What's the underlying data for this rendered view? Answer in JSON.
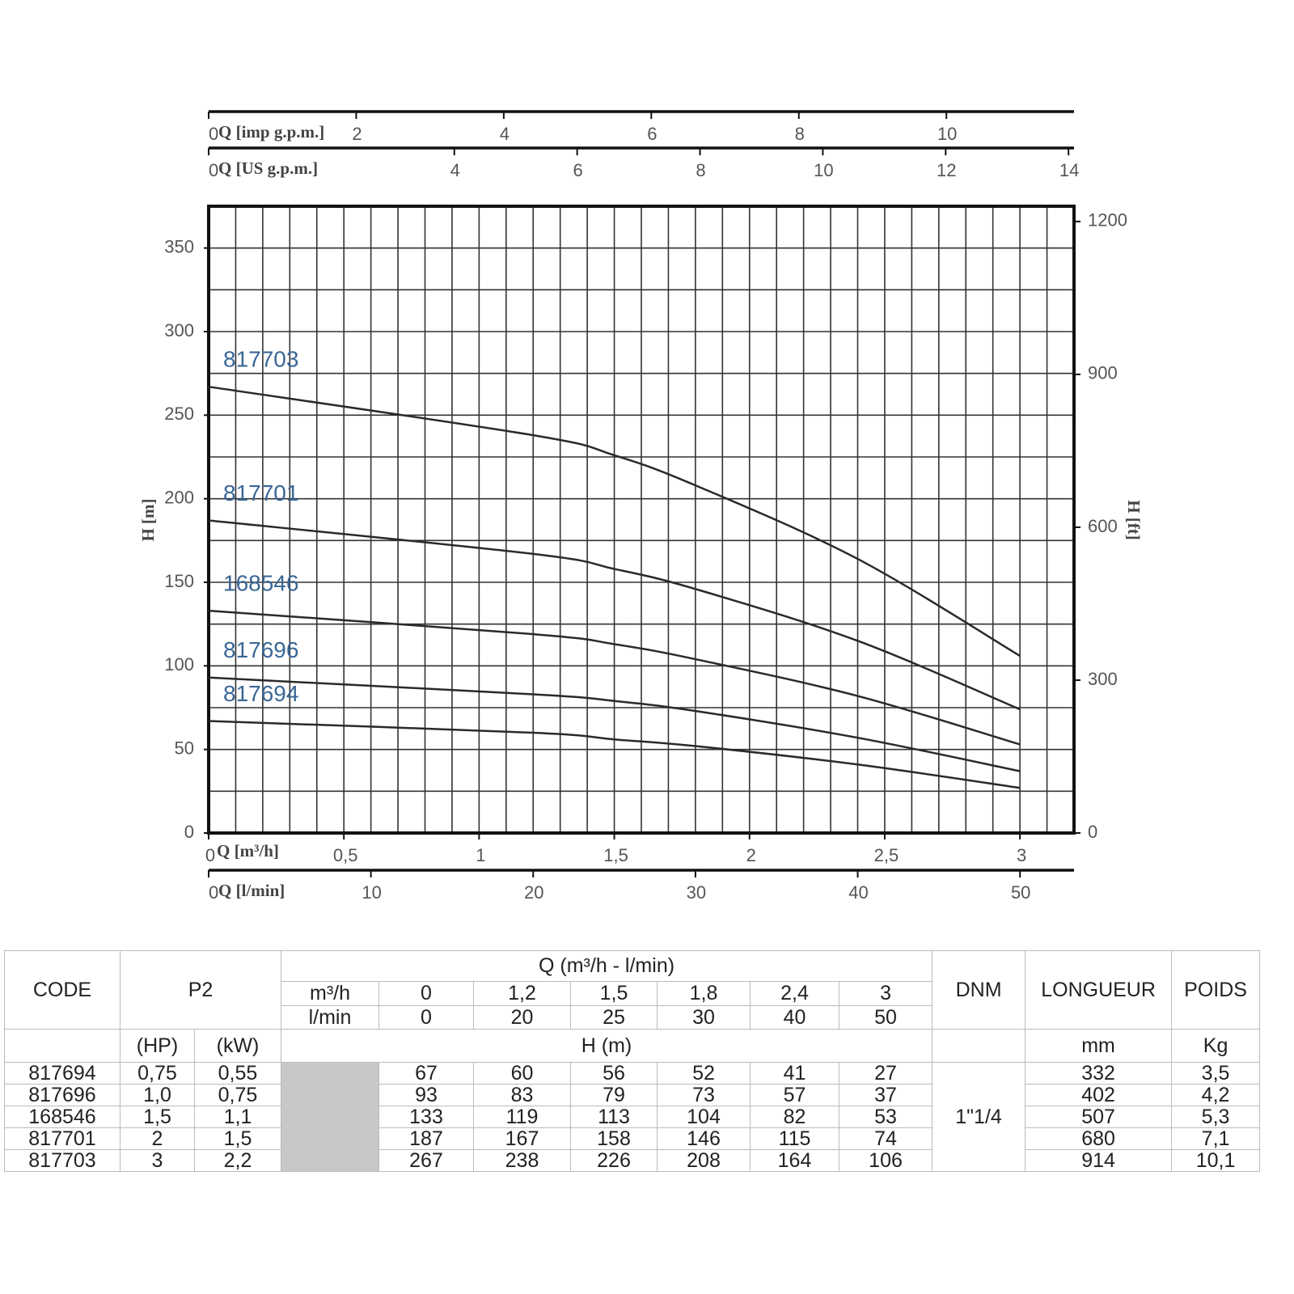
{
  "chart_data": {
    "type": "line",
    "x": [
      0,
      1.2,
      1.5,
      1.8,
      2.4,
      3
    ],
    "series": [
      {
        "name": "817694",
        "color": "#2a2a2a",
        "values": [
          67,
          60,
          56,
          52,
          41,
          27
        ]
      },
      {
        "name": "817696",
        "color": "#2a2a2a",
        "values": [
          93,
          83,
          79,
          73,
          57,
          37
        ]
      },
      {
        "name": "168546",
        "color": "#2a2a2a",
        "values": [
          133,
          119,
          113,
          104,
          82,
          53
        ]
      },
      {
        "name": "817701",
        "color": "#2a2a2a",
        "values": [
          187,
          167,
          158,
          146,
          115,
          74
        ]
      },
      {
        "name": "817703",
        "color": "#2a2a2a",
        "values": [
          267,
          238,
          226,
          208,
          164,
          106
        ]
      }
    ],
    "label_color": "#3a6796",
    "xlabel": "Q [m³/h]",
    "xlim": [
      0,
      3.2
    ],
    "xticks": [
      0,
      {
        "value": 0.5,
        "label": "0,5"
      },
      1,
      {
        "value": 1.5,
        "label": "1,5"
      },
      2,
      {
        "value": 2.5,
        "label": "2,5"
      },
      3
    ],
    "ylabel": "H [m]",
    "ylim": [
      0,
      375
    ],
    "yticks": [
      0,
      50,
      100,
      150,
      200,
      250,
      300,
      350
    ],
    "y2label": "H [ft]",
    "y2lim": [
      0,
      1230
    ],
    "y2ticks": [
      0,
      300,
      600,
      900,
      1200
    ],
    "extra_x_axes": [
      {
        "label": "Q [imp g.p.m.]",
        "position": "top",
        "lim": [
          0,
          11.73
        ],
        "ticks": [
          0,
          2,
          4,
          6,
          8,
          10
        ]
      },
      {
        "label": "Q [US g.p.m.]",
        "position": "top",
        "lim": [
          0,
          14.09
        ],
        "ticks": [
          0,
          4,
          6,
          8,
          10,
          12,
          14
        ]
      },
      {
        "label": "Q [l/min]",
        "position": "bottom",
        "lim": [
          0,
          53.33
        ],
        "ticks": [
          0,
          10,
          20,
          30,
          40,
          50
        ]
      }
    ],
    "grid": true,
    "xgrid_step": 0.1,
    "ygrid_step": 25
  },
  "table": {
    "header": {
      "code": "CODE",
      "p2": "P2",
      "q": "Q (m³/h - l/min)",
      "q_m3h_label": "m³/h",
      "q_m3h": [
        "0",
        "1,2",
        "1,5",
        "1,8",
        "2,4",
        "3"
      ],
      "q_lmin_label": "l/min",
      "q_lmin": [
        "0",
        "20",
        "25",
        "30",
        "40",
        "50"
      ],
      "dnm": "DNM",
      "longueur": "LONGUEUR",
      "poids": "POIDS",
      "hp": "(HP)",
      "kw": "(kW)",
      "h": "H (m)",
      "mm": "mm",
      "kg": "Kg"
    },
    "dnm_value": "1\"1/4",
    "rows": [
      [
        "817694",
        "0,75",
        "0,55",
        "67",
        "60",
        "56",
        "52",
        "41",
        "27",
        "332",
        "3,5"
      ],
      [
        "817696",
        "1,0",
        "0,75",
        "93",
        "83",
        "79",
        "73",
        "57",
        "37",
        "402",
        "4,2"
      ],
      [
        "168546",
        "1,5",
        "1,1",
        "133",
        "119",
        "113",
        "104",
        "82",
        "53",
        "507",
        "5,3"
      ],
      [
        "817701",
        "2",
        "1,5",
        "187",
        "167",
        "158",
        "146",
        "115",
        "74",
        "680",
        "7,1"
      ],
      [
        "817703",
        "3",
        "2,2",
        "267",
        "238",
        "226",
        "208",
        "164",
        "106",
        "914",
        "10,1"
      ]
    ]
  }
}
